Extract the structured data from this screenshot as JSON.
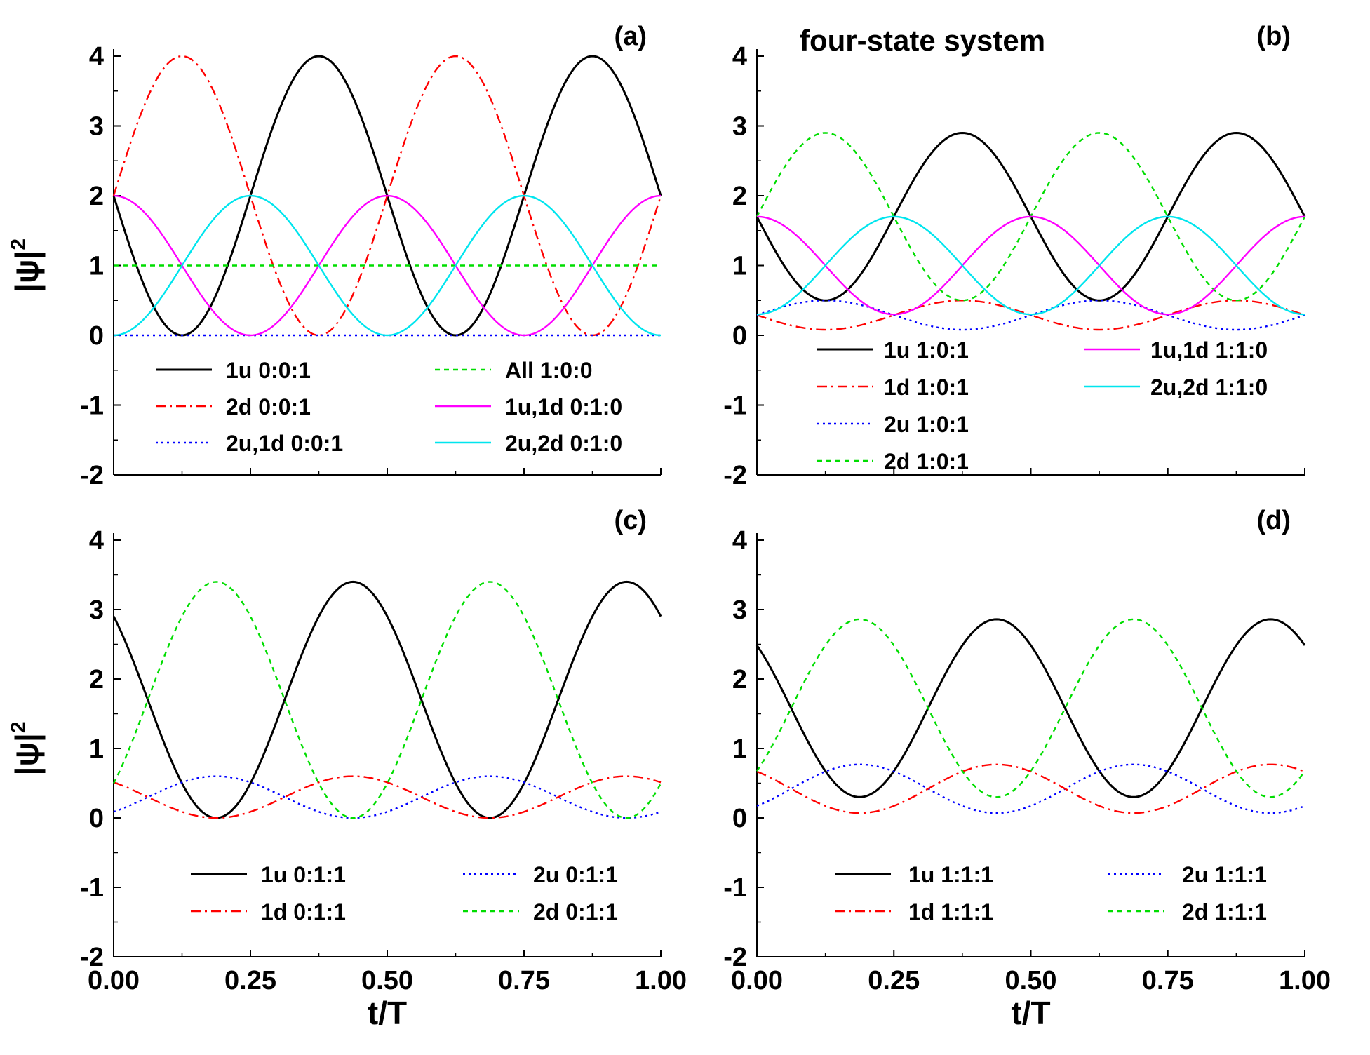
{
  "title": "four-state system",
  "chart_data": [
    {
      "id": "a",
      "panel_label": "(a)",
      "type": "line",
      "xlabel": "",
      "ylabel": "|ψ|",
      "ylabel_sup": "2",
      "xlim": [
        0,
        1
      ],
      "ylim": [
        -2,
        4
      ],
      "xticks": [
        "",
        "",
        "",
        "",
        ""
      ],
      "yticks": [
        "4",
        "3",
        "2",
        "1",
        "0",
        "-1",
        "-2"
      ],
      "legend": {
        "columns": 2,
        "placement": "lower-half"
      },
      "series": [
        {
          "name": "1u 0:0:1",
          "color": "#000000",
          "style": "solid",
          "mean": 2.0,
          "amp": 2.0,
          "period": 0.5,
          "phase": 0.375,
          "x": [
            0,
            0.125,
            0.375,
            0.625,
            0.875,
            1.0
          ],
          "y": [
            2.0,
            0.0,
            4.0,
            0.0,
            4.0,
            2.1
          ]
        },
        {
          "name": "2d 0:0:1",
          "color": "#ff0000",
          "style": "dashdot",
          "mean": 2.0,
          "amp": 2.0,
          "period": 0.5,
          "phase": 0.125,
          "x": [
            0,
            0.125,
            0.375,
            0.625,
            0.875,
            1.0
          ],
          "y": [
            2.0,
            4.0,
            0.0,
            4.0,
            0.0,
            1.9
          ]
        },
        {
          "name": "2u,1d 0:0:1",
          "color": "#0000ff",
          "style": "dotted",
          "mean": 0.0,
          "amp": 0.0,
          "period": 0.5,
          "phase": 0.0,
          "x": [
            0,
            1
          ],
          "y": [
            0,
            0
          ]
        },
        {
          "name": "All 1:0:0",
          "color": "#00dd00",
          "style": "dashed",
          "mean": 1.0,
          "amp": 0.0,
          "period": 0.5,
          "phase": 0.0,
          "x": [
            0,
            1
          ],
          "y": [
            1,
            1
          ]
        },
        {
          "name": "1u,1d 0:1:0",
          "color": "#ff00ff",
          "style": "solid",
          "mean": 1.0,
          "amp": 1.0,
          "period": 0.5,
          "phase": 0.0,
          "x": [
            0,
            0.25,
            0.5,
            0.75,
            1.0
          ],
          "y": [
            2,
            0,
            2,
            0,
            2
          ]
        },
        {
          "name": "2u,2d 0:1:0",
          "color": "#00e5ee",
          "style": "solid",
          "mean": 1.0,
          "amp": 1.0,
          "period": 0.5,
          "phase": 0.25,
          "x": [
            0,
            0.25,
            0.5,
            0.75,
            1.0
          ],
          "y": [
            0,
            2,
            0,
            2,
            0
          ]
        }
      ]
    },
    {
      "id": "b",
      "panel_label": "(b)",
      "type": "line",
      "xlabel": "",
      "ylabel": "",
      "ylabel_sup": "",
      "xlim": [
        0,
        1
      ],
      "ylim": [
        -2,
        4
      ],
      "xticks": [
        "",
        "",
        "",
        "",
        ""
      ],
      "yticks": [
        "4",
        "3",
        "2",
        "1",
        "0",
        "-1",
        "-2"
      ],
      "legend": {
        "columns": 2,
        "placement": "lower-half"
      },
      "series": [
        {
          "name": "1u 1:0:1",
          "color": "#000000",
          "style": "solid",
          "mean": 1.7,
          "amp": 1.2,
          "period": 0.5,
          "phase": 0.375,
          "x": [
            0,
            0.125,
            0.375,
            0.625,
            0.875,
            1.0
          ],
          "y": [
            1.7,
            0.5,
            2.9,
            0.5,
            2.9,
            1.75
          ]
        },
        {
          "name": "1d 1:0:1",
          "color": "#ff0000",
          "style": "dashdot",
          "mean": 0.29,
          "amp": 0.21,
          "period": 0.5,
          "phase": 0.375,
          "x": [
            0,
            0.125,
            0.375,
            0.625,
            0.875,
            1.0
          ],
          "y": [
            0.27,
            0.08,
            0.5,
            0.08,
            0.5,
            0.3
          ]
        },
        {
          "name": "2u 1:0:1",
          "color": "#0000ff",
          "style": "dotted",
          "mean": 0.29,
          "amp": 0.21,
          "period": 0.5,
          "phase": 0.125,
          "x": [
            0,
            0.125,
            0.375,
            0.625,
            0.875,
            1.0
          ],
          "y": [
            0.3,
            0.5,
            0.08,
            0.5,
            0.08,
            0.28
          ]
        },
        {
          "name": "2d 1:0:1",
          "color": "#00dd00",
          "style": "dashed",
          "mean": 1.7,
          "amp": 1.2,
          "period": 0.5,
          "phase": 0.125,
          "x": [
            0,
            0.125,
            0.375,
            0.625,
            0.875,
            1.0
          ],
          "y": [
            1.7,
            2.9,
            0.5,
            2.9,
            0.5,
            1.65
          ]
        },
        {
          "name": "1u,1d 1:1:0",
          "color": "#ff00ff",
          "style": "solid",
          "mean": 1.0,
          "amp": 0.7,
          "period": 0.5,
          "phase": 0.0,
          "x": [
            0,
            0.25,
            0.5,
            0.75,
            1.0
          ],
          "y": [
            1.7,
            0.3,
            1.7,
            0.3,
            1.7
          ]
        },
        {
          "name": "2u,2d 1:1:0",
          "color": "#00e5ee",
          "style": "solid",
          "mean": 1.0,
          "amp": 0.7,
          "period": 0.5,
          "phase": 0.25,
          "x": [
            0,
            0.25,
            0.5,
            0.75,
            1.0
          ],
          "y": [
            0.3,
            1.7,
            0.3,
            1.7,
            0.3
          ]
        }
      ]
    },
    {
      "id": "c",
      "panel_label": "(c)",
      "type": "line",
      "xlabel": "t/T",
      "ylabel": "|ψ|",
      "ylabel_sup": "2",
      "xlim": [
        0,
        1
      ],
      "ylim": [
        -2,
        4
      ],
      "xticks": [
        "0.00",
        "0.25",
        "0.50",
        "0.75",
        "1.00"
      ],
      "yticks": [
        "4",
        "3",
        "2",
        "1",
        "0",
        "-1",
        "-2"
      ],
      "legend": {
        "columns": 2,
        "placement": "bottom"
      },
      "series": [
        {
          "name": "1u 0:1:1",
          "color": "#000000",
          "style": "solid",
          "mean": 1.7,
          "amp": 1.7,
          "period": 0.5,
          "phase": 0.4375,
          "x": [
            0,
            0.1875,
            0.4375,
            0.6875,
            0.9375,
            1.0
          ],
          "y": [
            2.9,
            0.0,
            3.4,
            0.0,
            3.4,
            3.0
          ]
        },
        {
          "name": "2u 0:1:1",
          "color": "#0000ff",
          "style": "dotted",
          "mean": 0.3,
          "amp": 0.3,
          "period": 0.5,
          "phase": 0.1875,
          "x": [
            0,
            0.1875,
            0.4375,
            0.6875,
            0.9375,
            1.0
          ],
          "y": [
            0.09,
            0.6,
            0.0,
            0.6,
            0.0,
            0.05
          ]
        },
        {
          "name": "1d 0:1:1",
          "color": "#ff0000",
          "style": "dashdot",
          "mean": 0.3,
          "amp": 0.3,
          "period": 0.5,
          "phase": 0.4375,
          "x": [
            0,
            0.1875,
            0.4375,
            0.6875,
            0.9375,
            1.0
          ],
          "y": [
            0.5,
            0.0,
            0.6,
            0.0,
            0.6,
            0.5
          ]
        },
        {
          "name": "2d 0:1:1",
          "color": "#00dd00",
          "style": "dashed",
          "mean": 1.7,
          "amp": 1.7,
          "period": 0.5,
          "phase": 0.1875,
          "x": [
            0,
            0.1875,
            0.4375,
            0.6875,
            0.9375,
            1.0
          ],
          "y": [
            0.5,
            3.4,
            0.0,
            3.4,
            0.0,
            0.5
          ]
        }
      ]
    },
    {
      "id": "d",
      "panel_label": "(d)",
      "type": "line",
      "xlabel": "t/T",
      "ylabel": "",
      "ylabel_sup": "",
      "xlim": [
        0,
        1
      ],
      "ylim": [
        -2,
        4
      ],
      "xticks": [
        "0.00",
        "0.25",
        "0.50",
        "0.75",
        "1.00"
      ],
      "yticks": [
        "4",
        "3",
        "2",
        "1",
        "0",
        "-1",
        "-2"
      ],
      "legend": {
        "columns": 2,
        "placement": "bottom"
      },
      "series": [
        {
          "name": "1u 1:1:1",
          "color": "#000000",
          "style": "solid",
          "mean": 1.58,
          "amp": 1.28,
          "period": 0.5,
          "phase": 0.4375,
          "x": [
            0,
            0.1875,
            0.4375,
            0.6875,
            0.9375,
            1.0
          ],
          "y": [
            2.5,
            0.3,
            2.86,
            0.3,
            2.86,
            2.55
          ]
        },
        {
          "name": "2u 1:1:1",
          "color": "#0000ff",
          "style": "dotted",
          "mean": 0.42,
          "amp": 0.35,
          "period": 0.5,
          "phase": 0.1875,
          "x": [
            0,
            0.1875,
            0.4375,
            0.6875,
            0.9375,
            1.0
          ],
          "y": [
            0.17,
            0.77,
            0.07,
            0.77,
            0.07,
            0.15
          ]
        },
        {
          "name": "1d 1:1:1",
          "color": "#ff0000",
          "style": "dashdot",
          "mean": 0.42,
          "amp": 0.35,
          "period": 0.5,
          "phase": 0.4375,
          "x": [
            0,
            0.1875,
            0.4375,
            0.6875,
            0.9375,
            1.0
          ],
          "y": [
            0.67,
            0.07,
            0.77,
            0.07,
            0.77,
            0.69
          ]
        },
        {
          "name": "2d 1:1:1",
          "color": "#00dd00",
          "style": "dashed",
          "mean": 1.58,
          "amp": 1.28,
          "period": 0.5,
          "phase": 0.1875,
          "x": [
            0,
            0.1875,
            0.4375,
            0.6875,
            0.9375,
            1.0
          ],
          "y": [
            0.66,
            2.86,
            0.3,
            2.86,
            0.3,
            0.6
          ]
        }
      ]
    }
  ]
}
